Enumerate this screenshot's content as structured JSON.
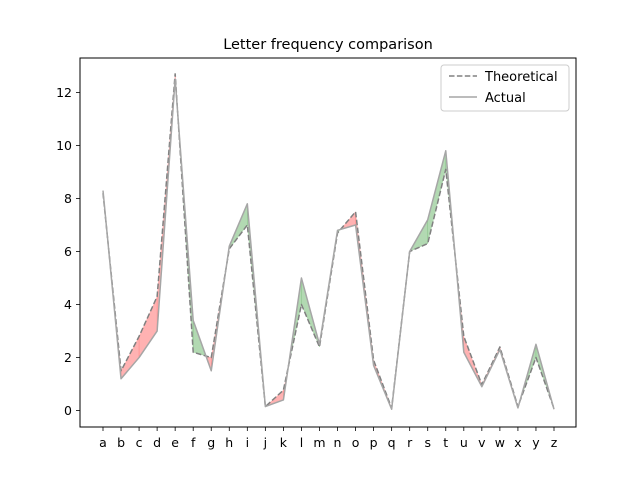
{
  "chart_data": {
    "type": "line",
    "title": "Letter frequency comparison",
    "xlabel": "",
    "ylabel": "",
    "categories": [
      "a",
      "b",
      "c",
      "d",
      "e",
      "f",
      "g",
      "h",
      "i",
      "j",
      "k",
      "l",
      "m",
      "n",
      "o",
      "p",
      "q",
      "r",
      "s",
      "t",
      "u",
      "v",
      "w",
      "x",
      "y",
      "z"
    ],
    "ylim": [
      -0.62,
      13.3
    ],
    "yticks": [
      0,
      2,
      4,
      6,
      8,
      10,
      12
    ],
    "series": [
      {
        "name": "Theoretical",
        "style": "dashed",
        "color": "#808080",
        "values": [
          8.2,
          1.5,
          2.8,
          4.3,
          12.7,
          2.2,
          2.0,
          6.1,
          7.0,
          0.15,
          0.77,
          4.0,
          2.4,
          6.7,
          7.5,
          1.9,
          0.095,
          6.0,
          6.3,
          9.1,
          2.8,
          0.98,
          2.4,
          0.15,
          2.0,
          0.074
        ]
      },
      {
        "name": "Actual",
        "style": "solid",
        "color": "#a6a6a6",
        "values": [
          8.3,
          1.2,
          2.0,
          3.0,
          12.5,
          3.4,
          1.5,
          6.2,
          7.8,
          0.15,
          0.4,
          5.0,
          2.5,
          6.8,
          7.0,
          1.7,
          0.05,
          6.0,
          7.2,
          9.8,
          2.2,
          0.9,
          2.3,
          0.1,
          2.5,
          0.05
        ]
      }
    ],
    "fill": {
      "above_color": "#008000",
      "below_color": "#ff0000",
      "alpha": 0.3
    },
    "legend": {
      "position": "upper right",
      "entries": [
        "Theoretical",
        "Actual"
      ]
    },
    "grid": false
  }
}
